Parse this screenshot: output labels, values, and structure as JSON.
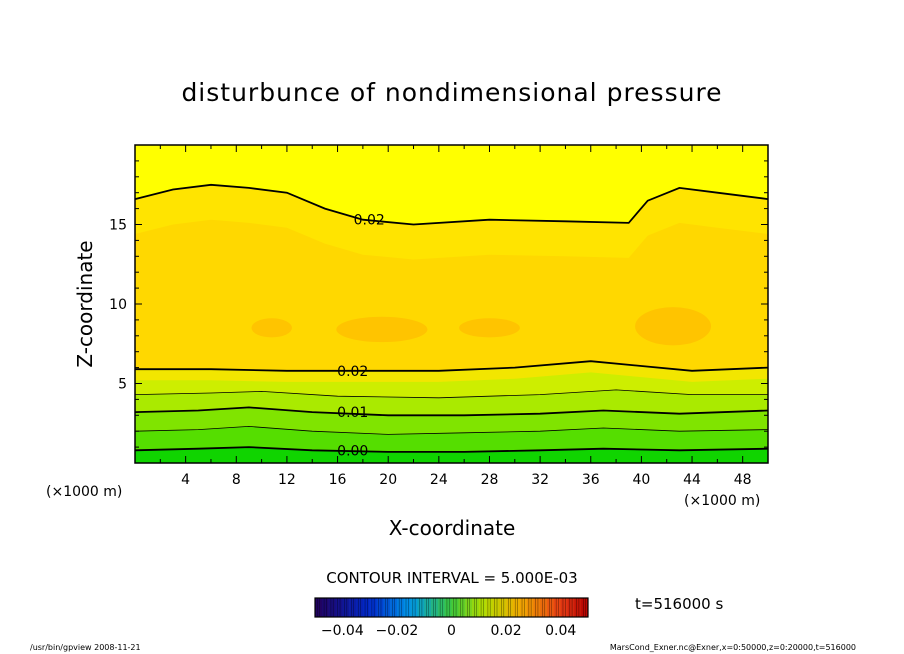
{
  "chart_data": {
    "type": "heatmap",
    "title": "disturbunce of nondimensional pressure",
    "xlabel": "X-coordinate",
    "ylabel": "Z-coordinate",
    "x_unit": "(×1000 m)",
    "y_unit": "(×1000 m)",
    "xlim": [
      0,
      50
    ],
    "ylim": [
      0,
      20
    ],
    "x_ticks": [
      4,
      8,
      12,
      16,
      20,
      24,
      28,
      32,
      36,
      40,
      44,
      48
    ],
    "y_ticks": [
      5,
      10,
      15
    ],
    "contour_interval_text": "CONTOUR INTERVAL = 5.000E-03",
    "time_text": "t=516000 s",
    "colorbar": {
      "range": [
        -0.05,
        0.05
      ],
      "tick_values": [
        -0.04,
        -0.02,
        0,
        0.02,
        0.04
      ],
      "tick_labels": [
        "−0.04",
        "−0.02",
        "0",
        "0.02",
        "0.04"
      ]
    },
    "contour_labels": [
      {
        "text": "0.02",
        "x": 18.5,
        "z": 15.3
      },
      {
        "text": "0.02",
        "x": 17.2,
        "z": 5.8
      },
      {
        "text": "0.01",
        "x": 17.2,
        "z": 3.2
      },
      {
        "text": "0.00",
        "x": 17.2,
        "z": 0.8
      }
    ],
    "contours": [
      {
        "level": 0.02,
        "bold": true,
        "points": [
          [
            0,
            16.6
          ],
          [
            3,
            17.2
          ],
          [
            6,
            17.5
          ],
          [
            9,
            17.3
          ],
          [
            12,
            17.0
          ],
          [
            15,
            16.0
          ],
          [
            18,
            15.3
          ],
          [
            22,
            15.0
          ],
          [
            28,
            15.3
          ],
          [
            34,
            15.2
          ],
          [
            39,
            15.1
          ],
          [
            40.5,
            16.5
          ],
          [
            43,
            17.3
          ],
          [
            46,
            17.0
          ],
          [
            50,
            16.6
          ]
        ]
      },
      {
        "level": 0.02,
        "bold": true,
        "points": [
          [
            0,
            5.9
          ],
          [
            6,
            5.9
          ],
          [
            12,
            5.8
          ],
          [
            18,
            5.8
          ],
          [
            24,
            5.8
          ],
          [
            30,
            6.0
          ],
          [
            36,
            6.4
          ],
          [
            40,
            6.1
          ],
          [
            44,
            5.8
          ],
          [
            50,
            6.0
          ]
        ]
      },
      {
        "level": 0.015,
        "bold": false,
        "points": [
          [
            0,
            4.3
          ],
          [
            6,
            4.4
          ],
          [
            10,
            4.5
          ],
          [
            16,
            4.2
          ],
          [
            24,
            4.1
          ],
          [
            32,
            4.3
          ],
          [
            38,
            4.6
          ],
          [
            44,
            4.3
          ],
          [
            50,
            4.3
          ]
        ]
      },
      {
        "level": 0.01,
        "bold": true,
        "points": [
          [
            0,
            3.2
          ],
          [
            5,
            3.3
          ],
          [
            9,
            3.5
          ],
          [
            14,
            3.2
          ],
          [
            20,
            3.0
          ],
          [
            26,
            3.0
          ],
          [
            32,
            3.1
          ],
          [
            37,
            3.3
          ],
          [
            43,
            3.1
          ],
          [
            50,
            3.3
          ]
        ]
      },
      {
        "level": 0.005,
        "bold": false,
        "points": [
          [
            0,
            2.0
          ],
          [
            5,
            2.1
          ],
          [
            9,
            2.3
          ],
          [
            14,
            2.0
          ],
          [
            20,
            1.8
          ],
          [
            26,
            1.9
          ],
          [
            32,
            2.0
          ],
          [
            37,
            2.2
          ],
          [
            43,
            2.0
          ],
          [
            50,
            2.1
          ]
        ]
      },
      {
        "level": 0.0,
        "bold": true,
        "points": [
          [
            0,
            0.8
          ],
          [
            5,
            0.9
          ],
          [
            9,
            1.0
          ],
          [
            14,
            0.8
          ],
          [
            20,
            0.7
          ],
          [
            26,
            0.7
          ],
          [
            32,
            0.8
          ],
          [
            37,
            0.9
          ],
          [
            43,
            0.8
          ],
          [
            50,
            0.9
          ]
        ]
      }
    ],
    "grid": false
  },
  "footer": {
    "left": "/usr/bin/gpview   2008-11-21",
    "right": "MarsCond_Exner.nc@Exner,x=0:50000,z=0:20000,t=516000"
  },
  "colors": {
    "top_band": "#ffff00",
    "upper_band": "#ffe400",
    "middle_band": "#ffd800",
    "blob": "#ffc400",
    "band_5": "#cdee00",
    "band_4": "#aaea00",
    "band_3": "#80e400",
    "band_2": "#55de00",
    "band_1": "#2ed800",
    "bottom_band": "#10d400",
    "frame": "#000000"
  }
}
